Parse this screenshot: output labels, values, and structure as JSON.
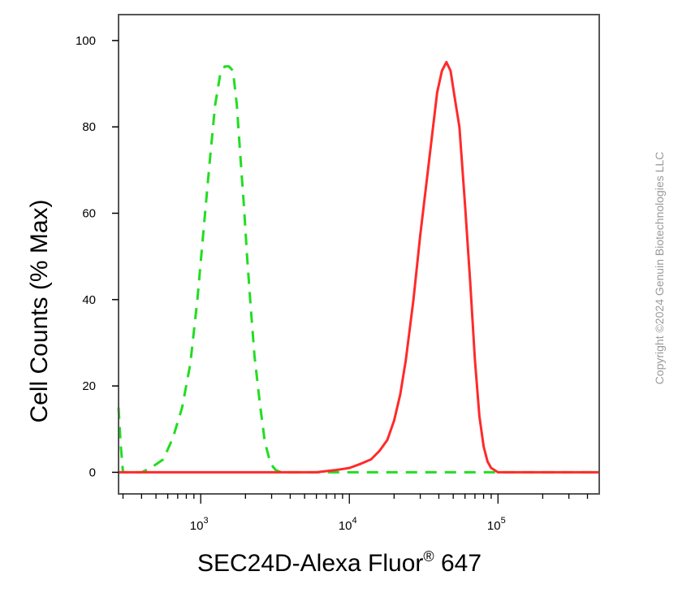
{
  "chart_data": {
    "type": "line",
    "xlabel": "SEC24D-Alexa Fluor",
    "xlabel_superscript": "®",
    "xlabel_suffix": " 647",
    "ylabel": "Cell Counts (% Max)",
    "x_scale": "log",
    "xlim": [
      280,
      480000
    ],
    "ylim": [
      -5,
      106
    ],
    "y_ticks": [
      0,
      20,
      40,
      60,
      80,
      100
    ],
    "y_tick_labels": [
      "0",
      "20",
      "40",
      "60",
      "80",
      "100"
    ],
    "x_ticks": [
      {
        "value": 1000,
        "base": "10",
        "exp": "3"
      },
      {
        "value": 10000,
        "base": "10",
        "exp": "4"
      },
      {
        "value": 100000,
        "base": "10",
        "exp": "5"
      }
    ],
    "grid": false,
    "series": [
      {
        "style": "dashed",
        "color": "#22dd22",
        "x": [
          280,
          290,
          300,
          330,
          400,
          460,
          560,
          650,
          750,
          850,
          950,
          1050,
          1150,
          1250,
          1350,
          1450,
          1550,
          1650,
          1750,
          1850,
          1950,
          2050,
          2150,
          2300,
          2500,
          2700,
          2950,
          3200,
          3500,
          4000,
          6000,
          10000,
          20000,
          50000,
          100000,
          480000
        ],
        "y": [
          15,
          6,
          0,
          0,
          0,
          1,
          3,
          8,
          15,
          25,
          40,
          57,
          72,
          85,
          92,
          94,
          94,
          93,
          85,
          73,
          62,
          50,
          40,
          27,
          16,
          7,
          2,
          0.5,
          0,
          0,
          0,
          0,
          0,
          0,
          0,
          0
        ]
      },
      {
        "style": "solid",
        "color": "#ff2a2a",
        "x": [
          280,
          6000,
          8000,
          10000,
          12000,
          14000,
          16000,
          18000,
          20000,
          22000,
          24000,
          27000,
          30000,
          33000,
          36000,
          39000,
          42000,
          45000,
          48000,
          51000,
          55000,
          60000,
          65000,
          70000,
          75000,
          80000,
          85000,
          90000,
          100000,
          480000
        ],
        "y": [
          0,
          0,
          0.5,
          1,
          2,
          3,
          5,
          7.5,
          12,
          18,
          26,
          40,
          55,
          67,
          78,
          88,
          93,
          95,
          93,
          87,
          80,
          62,
          44,
          26,
          13,
          6,
          2.5,
          1,
          0,
          0
        ]
      }
    ]
  },
  "watermark": "Copyright ©2024 Genuin Biotechnologies LLC"
}
